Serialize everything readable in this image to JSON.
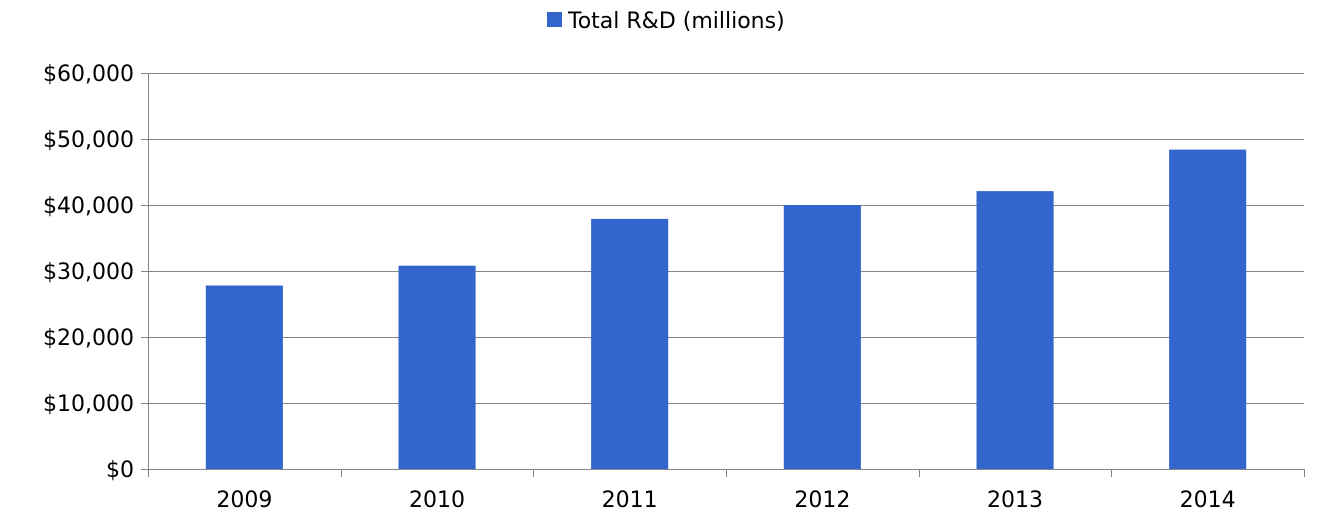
{
  "chart_data": {
    "type": "bar",
    "categories": [
      "2009",
      "2010",
      "2011",
      "2012",
      "2013",
      "2014"
    ],
    "series": [
      {
        "name": "Total R&D (millions)",
        "values": [
          27800,
          30800,
          37900,
          40000,
          42100,
          48400
        ],
        "color": "#3366cc"
      }
    ],
    "ylim": [
      0,
      60000
    ],
    "yticks": [
      0,
      10000,
      20000,
      30000,
      40000,
      50000,
      60000
    ],
    "ytick_labels": [
      "$0",
      "$10,000",
      "$20,000",
      "$30,000",
      "$40,000",
      "$50,000",
      "$60,000"
    ],
    "grid": "horizontal",
    "legend": "top-center",
    "title": "",
    "xlabel": "",
    "ylabel": ""
  }
}
